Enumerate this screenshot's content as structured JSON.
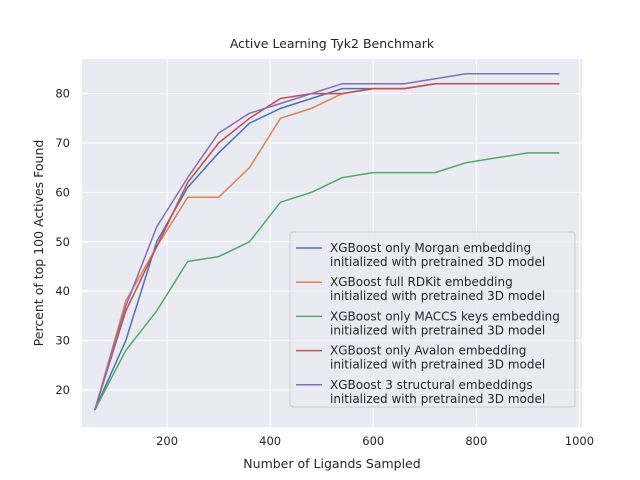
{
  "chart_data": {
    "type": "line",
    "title": "Active Learning Tyk2 Benchmark",
    "xlabel": "Number of Ligands Sampled",
    "ylabel": "Percent of top 100 Actives Found",
    "xlim": [
      35,
      1005
    ],
    "ylim": [
      12.5,
      87
    ],
    "xticks": [
      200,
      400,
      600,
      800,
      1000
    ],
    "yticks": [
      20,
      30,
      40,
      50,
      60,
      70,
      80
    ],
    "grid": true,
    "legend_position": "lower-right",
    "series": [
      {
        "name": "XGBoost only Morgan embedding",
        "name_line2": "initialized with pretrained 3D model",
        "color": "#4c72b0",
        "x": [
          60,
          120,
          180,
          240,
          300,
          360,
          420,
          480,
          540,
          600,
          660,
          720,
          780,
          840,
          900,
          960
        ],
        "y": [
          16,
          30,
          50,
          61,
          68,
          74,
          77,
          79,
          81,
          81,
          81,
          82,
          82,
          82,
          82,
          82
        ]
      },
      {
        "name": "XGBoost full RDKit embedding",
        "name_line2": "initialized with pretrained 3D model",
        "color": "#dd8452",
        "x": [
          60,
          120,
          180,
          240,
          300,
          360,
          420,
          480,
          540,
          600,
          660,
          720,
          780,
          840,
          900,
          960
        ],
        "y": [
          16,
          38,
          49,
          59,
          59,
          65,
          75,
          77,
          80,
          81,
          81,
          82,
          82,
          82,
          82,
          82
        ]
      },
      {
        "name": "XGBoost only MACCS keys embedding",
        "name_line2": "initialized with pretrained 3D model",
        "color": "#55a868",
        "x": [
          60,
          120,
          180,
          240,
          300,
          360,
          420,
          480,
          540,
          600,
          660,
          720,
          780,
          840,
          900,
          960
        ],
        "y": [
          16,
          28,
          36,
          46,
          47,
          50,
          58,
          60,
          63,
          64,
          64,
          64,
          66,
          67,
          68,
          68
        ]
      },
      {
        "name": "XGBoost only Avalon embedding",
        "name_line2": "initialized with pretrained 3D model",
        "color": "#c44e52",
        "x": [
          60,
          120,
          180,
          240,
          300,
          360,
          420,
          480,
          540,
          600,
          660,
          720,
          780,
          840,
          900,
          960
        ],
        "y": [
          16,
          36,
          49,
          62,
          70,
          75,
          79,
          80,
          80,
          81,
          81,
          82,
          82,
          82,
          82,
          82
        ]
      },
      {
        "name": "XGBoost 3 structural embeddings",
        "name_line2": "initialized with pretrained 3D model",
        "color": "#8172b3",
        "x": [
          60,
          120,
          180,
          240,
          300,
          360,
          420,
          480,
          540,
          600,
          660,
          720,
          780,
          840,
          900,
          960
        ],
        "y": [
          16,
          37,
          53,
          63,
          72,
          76,
          78,
          80,
          82,
          82,
          82,
          83,
          84,
          84,
          84,
          84
        ]
      }
    ]
  }
}
